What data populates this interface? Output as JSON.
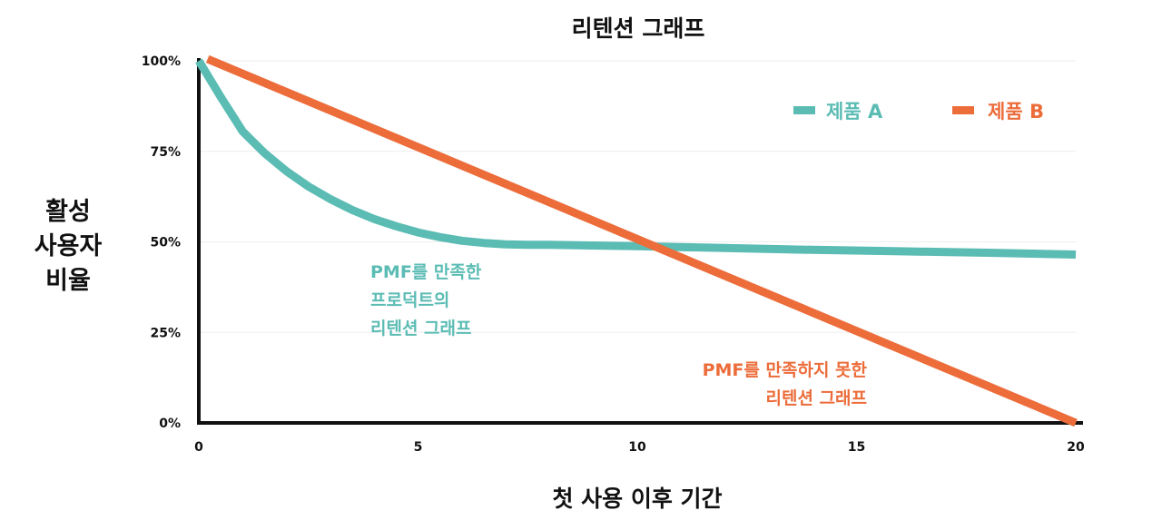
{
  "chart_data": {
    "type": "line",
    "title": "리텐션 그래프",
    "xlabel": "첫 사용 이후 기간",
    "ylabel_lines": [
      "활성",
      "사용자",
      "비율"
    ],
    "xlim": [
      0,
      20
    ],
    "ylim": [
      0,
      100
    ],
    "xticks": [
      {
        "value": 0,
        "label": "0"
      },
      {
        "value": 5,
        "label": "5"
      },
      {
        "value": 10,
        "label": "10"
      },
      {
        "value": 15,
        "label": "15"
      },
      {
        "value": 20,
        "label": "20"
      }
    ],
    "yticks": [
      {
        "value": 0,
        "label": "0%"
      },
      {
        "value": 25,
        "label": "25%"
      },
      {
        "value": 50,
        "label": "50%"
      },
      {
        "value": 75,
        "label": "75%"
      },
      {
        "value": 100,
        "label": "100%"
      }
    ],
    "grid": true,
    "legend_position": "top-right",
    "series": [
      {
        "name": "제품 A",
        "color": "#5bbcb4",
        "points": [
          [
            0,
            100
          ],
          [
            0.5,
            90
          ],
          [
            1,
            80.5
          ],
          [
            1.5,
            74.5
          ],
          [
            2,
            69.5
          ],
          [
            2.5,
            65.3
          ],
          [
            3,
            61.8
          ],
          [
            3.5,
            58.8
          ],
          [
            4,
            56.3
          ],
          [
            4.5,
            54.3
          ],
          [
            5,
            52.6
          ],
          [
            5.5,
            51.3
          ],
          [
            6,
            50.3
          ],
          [
            6.5,
            49.7
          ],
          [
            7,
            49.3
          ],
          [
            7.5,
            49.2
          ],
          [
            8,
            49.2
          ],
          [
            10,
            48.8
          ],
          [
            12,
            48.3
          ],
          [
            14,
            47.8
          ],
          [
            16,
            47.4
          ],
          [
            18,
            47.0
          ],
          [
            20,
            46.5
          ]
        ]
      },
      {
        "name": "제품 B",
        "color": "#ec6c3a",
        "points": [
          [
            0.2,
            100.5
          ],
          [
            20,
            0
          ]
        ]
      }
    ],
    "annotations": [
      {
        "lines": [
          "PMF를 만족한",
          "프로덕트의",
          "리텐션 그래프"
        ],
        "color": "#5bbcb4",
        "anchor": "start"
      },
      {
        "lines": [
          "PMF를 만족하지 못한",
          "리텐션 그래프"
        ],
        "color": "#ec6c3a",
        "anchor": "end"
      }
    ]
  }
}
